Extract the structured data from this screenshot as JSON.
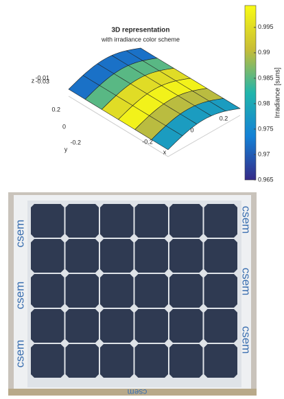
{
  "chart_data": {
    "type": "surface",
    "title": "3D representation",
    "subtitle": "with irradiance color scheme",
    "xlabel": "x",
    "ylabel": "y",
    "zlabel": "z",
    "xticks": [
      -0.2,
      0,
      0.2
    ],
    "yticks": [
      0.2,
      0,
      -0.2
    ],
    "zticks": [
      -0.01,
      -0.03
    ],
    "irradiance": [
      0.972,
      0.985,
      0.995,
      0.998,
      0.99,
      0.978
    ],
    "colorbar": {
      "label": "Irradiance [suns]",
      "clim": [
        0.965,
        0.9993
      ],
      "ticks": [
        0.965,
        0.97,
        0.975,
        0.98,
        0.985,
        0.99,
        0.995
      ]
    }
  },
  "photo": {
    "label": "csem"
  }
}
